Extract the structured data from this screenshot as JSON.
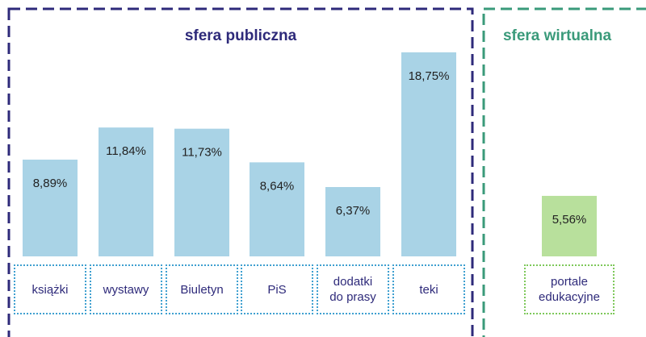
{
  "chart_data": [
    {
      "type": "bar",
      "title": "sfera publiczna",
      "color": "#a9d3e6",
      "categories": [
        "książki",
        "wystawy",
        "Biuletyn",
        "PiS",
        "dodatki\ndo prasy",
        "teki"
      ],
      "values": [
        8.89,
        11.84,
        11.73,
        8.64,
        6.37,
        18.75
      ],
      "value_labels": [
        "8,89%",
        "11,84%",
        "11,73%",
        "8,64%",
        "6,37%",
        "18,75%"
      ]
    },
    {
      "type": "bar",
      "title": "sfera wirtualna",
      "color": "#b8e09c",
      "categories": [
        "portale\nedukacyjne"
      ],
      "values": [
        5.56
      ],
      "value_labels": [
        "5,56%"
      ]
    }
  ]
}
